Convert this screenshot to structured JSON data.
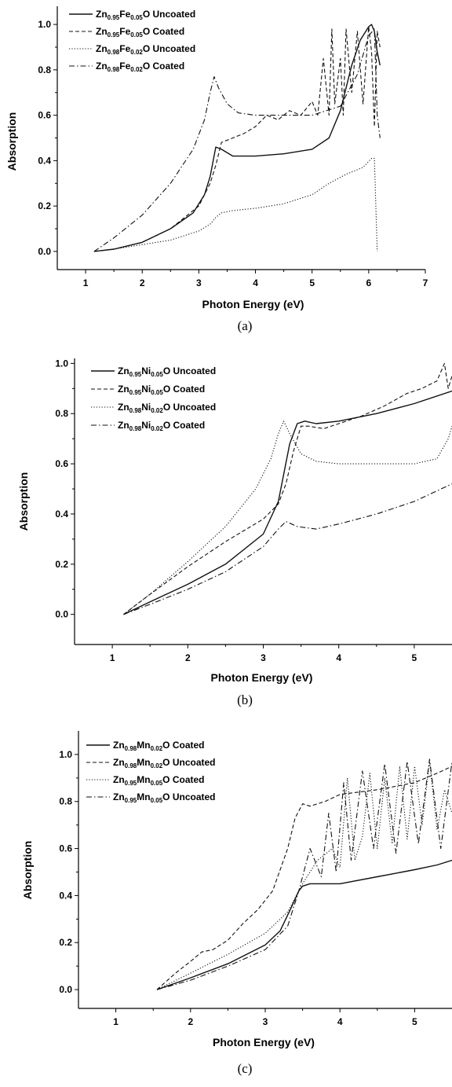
{
  "chart_data": [
    {
      "type": "line",
      "caption": "(a)",
      "xlabel": "Photon Energy (eV)",
      "ylabel": "Absorption",
      "xlim": [
        0.5,
        7
      ],
      "ylim": [
        -0.08,
        1.08
      ],
      "xticks": [
        1,
        2,
        3,
        4,
        5,
        6,
        7
      ],
      "yticks": [
        0.0,
        0.2,
        0.4,
        0.6,
        0.8,
        1.0
      ],
      "tick_labels_x": [
        "1",
        "2",
        "3",
        "4",
        "5",
        "6",
        "7"
      ],
      "tick_labels_y": [
        "0.0",
        "0.2",
        "0.4",
        "0.6",
        "0.8",
        "1.0"
      ],
      "legend_position": "top-left",
      "series": [
        {
          "name": [
            "Zn",
            "0.95",
            "Fe",
            "0.05",
            "O Uncoated"
          ],
          "style": "solid",
          "x": [
            1.15,
            1.5,
            2.0,
            2.5,
            2.9,
            3.1,
            3.2,
            3.3,
            3.4,
            3.6,
            4.0,
            4.5,
            5.0,
            5.3,
            5.5,
            5.7,
            5.85,
            6.0,
            6.05,
            6.1,
            6.15,
            6.2
          ],
          "y": [
            0.0,
            0.01,
            0.04,
            0.1,
            0.17,
            0.25,
            0.33,
            0.46,
            0.45,
            0.42,
            0.42,
            0.43,
            0.45,
            0.5,
            0.62,
            0.82,
            0.93,
            0.99,
            1.0,
            0.97,
            0.88,
            0.82
          ]
        },
        {
          "name": [
            "Zn",
            "0.95",
            "Fe",
            "0.05",
            "O Coated"
          ],
          "style": "dash",
          "x": [
            1.15,
            1.5,
            2.0,
            2.5,
            3.0,
            3.2,
            3.3,
            3.4,
            3.6,
            3.8,
            4.0,
            4.2,
            4.4,
            4.6,
            4.8,
            5.0,
            5.1,
            5.2,
            5.3,
            5.35,
            5.4,
            5.5,
            5.55,
            5.6,
            5.7,
            5.8,
            5.9,
            6.0,
            6.05,
            6.1,
            6.15,
            6.2
          ],
          "y": [
            0.0,
            0.01,
            0.04,
            0.1,
            0.2,
            0.3,
            0.38,
            0.48,
            0.5,
            0.52,
            0.55,
            0.6,
            0.58,
            0.62,
            0.6,
            0.66,
            0.6,
            0.85,
            0.6,
            0.98,
            0.65,
            0.85,
            0.6,
            0.98,
            0.7,
            0.97,
            0.65,
            0.99,
            0.88,
            0.55,
            0.97,
            0.9
          ]
        },
        {
          "name": [
            "Zn",
            "0.98",
            "Fe",
            "0.02",
            "O Uncoated"
          ],
          "style": "dot",
          "x": [
            1.15,
            1.5,
            2.0,
            2.5,
            3.0,
            3.2,
            3.3,
            3.4,
            3.6,
            4.0,
            4.5,
            5.0,
            5.3,
            5.6,
            5.9,
            6.05,
            6.1,
            6.15
          ],
          "y": [
            0.0,
            0.01,
            0.03,
            0.05,
            0.09,
            0.12,
            0.15,
            0.17,
            0.18,
            0.19,
            0.21,
            0.25,
            0.3,
            0.34,
            0.37,
            0.41,
            0.41,
            0.0
          ]
        },
        {
          "name": [
            "Zn",
            "0.98",
            "Fe",
            "0.02",
            "O Coated"
          ],
          "style": "dashdot",
          "x": [
            1.15,
            1.5,
            2.0,
            2.5,
            2.9,
            3.1,
            3.2,
            3.27,
            3.35,
            3.5,
            3.7,
            4.0,
            4.5,
            5.0,
            5.5,
            5.8,
            6.0,
            6.1,
            6.15,
            6.2
          ],
          "y": [
            0.0,
            0.06,
            0.16,
            0.3,
            0.45,
            0.58,
            0.7,
            0.77,
            0.72,
            0.65,
            0.61,
            0.6,
            0.6,
            0.6,
            0.64,
            0.78,
            0.95,
            0.98,
            0.6,
            0.5
          ]
        }
      ]
    },
    {
      "type": "line",
      "caption": "(b)",
      "xlabel": "Photon Energy (eV)",
      "ylabel": "Absorption",
      "xlim": [
        0.5,
        5.5
      ],
      "ylim": [
        -0.12,
        1.02
      ],
      "xticks": [
        1,
        2,
        3,
        4,
        5
      ],
      "yticks": [
        0.0,
        0.2,
        0.4,
        0.6,
        0.8,
        1.0
      ],
      "tick_labels_x": [
        "1",
        "2",
        "3",
        "4",
        "5"
      ],
      "tick_labels_y": [
        "0.0",
        "0.2",
        "0.4",
        "0.6",
        "0.8",
        "1.0"
      ],
      "legend_position": "top-left",
      "series": [
        {
          "name": [
            "Zn",
            "0.95",
            "Ni",
            "0.05",
            "O Uncoated"
          ],
          "style": "solid",
          "x": [
            1.15,
            1.5,
            2.0,
            2.5,
            3.0,
            3.2,
            3.35,
            3.45,
            3.55,
            3.7,
            4.0,
            4.5,
            5.0,
            5.5
          ],
          "y": [
            0.0,
            0.05,
            0.12,
            0.2,
            0.32,
            0.45,
            0.68,
            0.76,
            0.77,
            0.76,
            0.77,
            0.8,
            0.84,
            0.89
          ]
        },
        {
          "name": [
            "Zn",
            "0.95",
            "Ni",
            "0.05",
            "O Coated"
          ],
          "style": "dash",
          "x": [
            1.15,
            1.5,
            2.0,
            2.5,
            3.0,
            3.2,
            3.3,
            3.4,
            3.5,
            3.6,
            3.8,
            4.0,
            4.3,
            4.6,
            4.9,
            5.1,
            5.3,
            5.4,
            5.45,
            5.5
          ],
          "y": [
            0.0,
            0.08,
            0.19,
            0.29,
            0.38,
            0.44,
            0.52,
            0.65,
            0.75,
            0.75,
            0.74,
            0.76,
            0.79,
            0.83,
            0.88,
            0.9,
            0.93,
            1.0,
            0.9,
            0.95
          ]
        },
        {
          "name": [
            "Zn",
            "0.98",
            "Ni",
            "0.02",
            "O Uncoated"
          ],
          "style": "dot",
          "x": [
            1.15,
            1.5,
            2.0,
            2.5,
            2.9,
            3.1,
            3.2,
            3.27,
            3.35,
            3.5,
            3.7,
            4.0,
            4.5,
            5.0,
            5.3,
            5.45,
            5.5
          ],
          "y": [
            0.0,
            0.08,
            0.21,
            0.35,
            0.5,
            0.62,
            0.72,
            0.77,
            0.72,
            0.64,
            0.61,
            0.6,
            0.6,
            0.6,
            0.62,
            0.7,
            0.75
          ]
        },
        {
          "name": [
            "Zn",
            "0.98",
            "Ni",
            "0.02",
            "O Coated"
          ],
          "style": "dashdot",
          "x": [
            1.15,
            1.5,
            2.0,
            2.5,
            3.0,
            3.2,
            3.3,
            3.45,
            3.7,
            4.0,
            4.5,
            5.0,
            5.5
          ],
          "y": [
            0.0,
            0.04,
            0.1,
            0.17,
            0.27,
            0.34,
            0.37,
            0.35,
            0.34,
            0.36,
            0.4,
            0.45,
            0.52
          ]
        }
      ]
    },
    {
      "type": "line",
      "caption": "(c)",
      "xlabel": "Photon Energy (eV)",
      "ylabel": "Absorption",
      "xlim": [
        0.5,
        5.5
      ],
      "ylim": [
        -0.08,
        1.1
      ],
      "xticks": [
        1,
        2,
        3,
        4,
        5
      ],
      "yticks": [
        0.0,
        0.2,
        0.4,
        0.6,
        0.8,
        1.0
      ],
      "tick_labels_x": [
        "1",
        "2",
        "3",
        "4",
        "5"
      ],
      "tick_labels_y": [
        "0.0",
        "0.2",
        "0.4",
        "0.6",
        "0.8",
        "1.0"
      ],
      "legend_position": "top-left",
      "series": [
        {
          "name": [
            "Zn",
            "0.98",
            "Mn",
            "0.02",
            "O Coated"
          ],
          "style": "solid",
          "x": [
            1.55,
            2.0,
            2.5,
            3.0,
            3.2,
            3.35,
            3.45,
            3.5,
            3.6,
            4.0,
            4.5,
            5.0,
            5.3,
            5.5
          ],
          "y": [
            0.0,
            0.05,
            0.11,
            0.19,
            0.25,
            0.35,
            0.42,
            0.44,
            0.45,
            0.45,
            0.48,
            0.51,
            0.53,
            0.55
          ]
        },
        {
          "name": [
            "Zn",
            "0.98",
            "Mn",
            "0.02",
            "O Uncoated"
          ],
          "style": "dash",
          "x": [
            1.55,
            1.8,
            2.0,
            2.15,
            2.3,
            2.5,
            2.7,
            2.9,
            3.1,
            3.3,
            3.4,
            3.5,
            3.6,
            3.8,
            4.0,
            4.5,
            5.0,
            5.3,
            5.5
          ],
          "y": [
            0.0,
            0.07,
            0.12,
            0.16,
            0.17,
            0.21,
            0.28,
            0.34,
            0.42,
            0.6,
            0.73,
            0.79,
            0.78,
            0.8,
            0.83,
            0.85,
            0.88,
            0.92,
            0.95
          ]
        },
        {
          "name": [
            "Zn",
            "0.95",
            "Mn",
            "0.05",
            "O Coated"
          ],
          "style": "dot",
          "x": [
            1.55,
            2.0,
            2.5,
            3.0,
            3.3,
            3.5,
            3.7,
            3.9,
            4.0,
            4.1,
            4.2,
            4.3,
            4.4,
            4.5,
            4.6,
            4.7,
            4.8,
            4.9,
            5.0,
            5.1,
            5.2,
            5.3,
            5.4,
            5.5
          ],
          "y": [
            0.0,
            0.07,
            0.15,
            0.24,
            0.33,
            0.45,
            0.55,
            0.6,
            0.52,
            0.9,
            0.55,
            0.65,
            0.92,
            0.6,
            0.9,
            0.62,
            0.95,
            0.64,
            0.95,
            0.7,
            0.97,
            0.68,
            0.85,
            0.75
          ]
        },
        {
          "name": [
            "Zn",
            "0.95",
            "Mn",
            "0.05",
            "O Uncoated"
          ],
          "style": "dashdot",
          "x": [
            1.55,
            2.0,
            2.5,
            3.0,
            3.3,
            3.45,
            3.6,
            3.75,
            3.85,
            3.95,
            4.05,
            4.15,
            4.3,
            4.45,
            4.6,
            4.75,
            4.9,
            5.05,
            5.2,
            5.35,
            5.5
          ],
          "y": [
            0.0,
            0.04,
            0.1,
            0.17,
            0.27,
            0.42,
            0.6,
            0.48,
            0.75,
            0.5,
            0.88,
            0.55,
            0.93,
            0.6,
            0.96,
            0.58,
            0.97,
            0.62,
            0.98,
            0.6,
            0.97
          ]
        }
      ]
    }
  ]
}
